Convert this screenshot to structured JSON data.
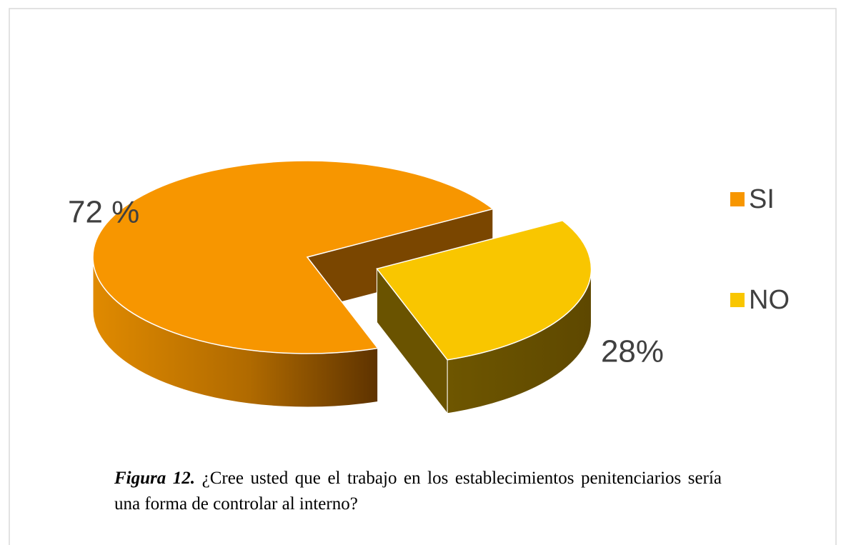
{
  "chart_data": {
    "type": "pie3d",
    "categories": [
      "SI",
      "NO"
    ],
    "values": [
      72,
      28
    ],
    "value_labels": [
      "72 %",
      "28%"
    ],
    "colors": [
      "#F79600",
      "#F9C600"
    ],
    "exploded": [
      false,
      true
    ],
    "legend": "right"
  },
  "caption": {
    "label": "Figura 12.",
    "text": "¿Cree usted que el trabajo en los establecimientos penitenciarios sería una forma de controlar al interno?"
  }
}
